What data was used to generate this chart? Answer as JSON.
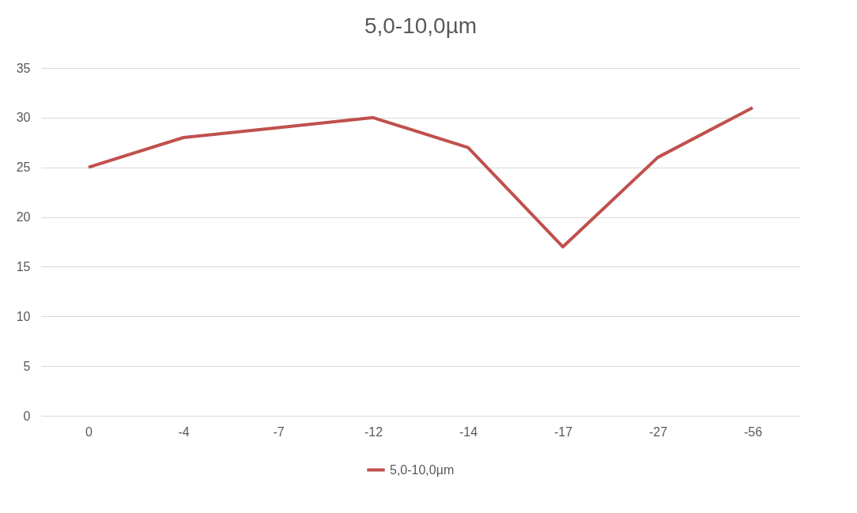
{
  "chart_data": {
    "type": "line",
    "title": "5,0-10,0µm",
    "categories": [
      "0",
      "-4",
      "-7",
      "-12",
      "-14",
      "-17",
      "-27",
      "-56"
    ],
    "series": [
      {
        "name": "5,0-10,0µm",
        "color": "#c0504d",
        "values": [
          25,
          28,
          29,
          30,
          27,
          17,
          26,
          31
        ]
      }
    ],
    "ylim": [
      0,
      35
    ],
    "yticks": [
      0,
      5,
      10,
      15,
      20,
      25,
      30,
      35
    ],
    "grid": "y",
    "legend": "bottom",
    "marker": "none",
    "line_style": "solid"
  }
}
